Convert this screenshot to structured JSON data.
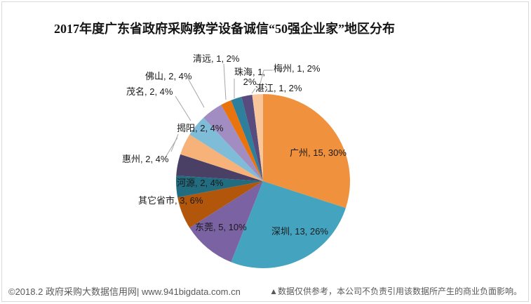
{
  "title": "2017年度广东省政府采购教学设备诚信“50强企业家”地区分布",
  "footer": {
    "left": "©2018.2 政府采购大数据信用网| www.941bigdata.com.cn",
    "right": "▲数据仅供参考，本公司不负责引用该数据所产生的商业负面影响。"
  },
  "chart_data": {
    "type": "pie",
    "title": "2017年度广东省政府采购教学设备诚信“50强企业家”地区分布",
    "total": 50,
    "start_angle_deg": 0,
    "direction": "clockwise",
    "label_format": "name, value, percent",
    "slices": [
      {
        "label": "广州",
        "value": 15,
        "pct": "30%",
        "color": "#F0913D"
      },
      {
        "label": "深圳",
        "value": 13,
        "pct": "26%",
        "color": "#44A4C0"
      },
      {
        "label": "东莞",
        "value": 5,
        "pct": "10%",
        "color": "#7B62A2"
      },
      {
        "label": "其它省市",
        "value": 3,
        "pct": "6%",
        "color": "#B1560B"
      },
      {
        "label": "河源",
        "value": 2,
        "pct": "4%",
        "color": "#226C80"
      },
      {
        "label": "惠州",
        "value": 2,
        "pct": "4%",
        "color": "#4A4066"
      },
      {
        "label": "揭阳",
        "value": 2,
        "pct": "4%",
        "color": "#F6B279"
      },
      {
        "label": "茂名",
        "value": 2,
        "pct": "4%",
        "color": "#7FBCD8"
      },
      {
        "label": "佛山",
        "value": 2,
        "pct": "4%",
        "color": "#A18DC2"
      },
      {
        "label": "清远",
        "value": 1,
        "pct": "2%",
        "color": "#E9730D"
      },
      {
        "label": "珠海",
        "value": 1,
        "pct": "2%",
        "color": "#2E7F9B"
      },
      {
        "label": "梅州",
        "value": 1,
        "pct": "2%",
        "color": "#584B7E"
      },
      {
        "label": "湛江",
        "value": 1,
        "pct": "2%",
        "color": "#F9C69C"
      }
    ],
    "leader_line_color": "#A6A6A6"
  }
}
